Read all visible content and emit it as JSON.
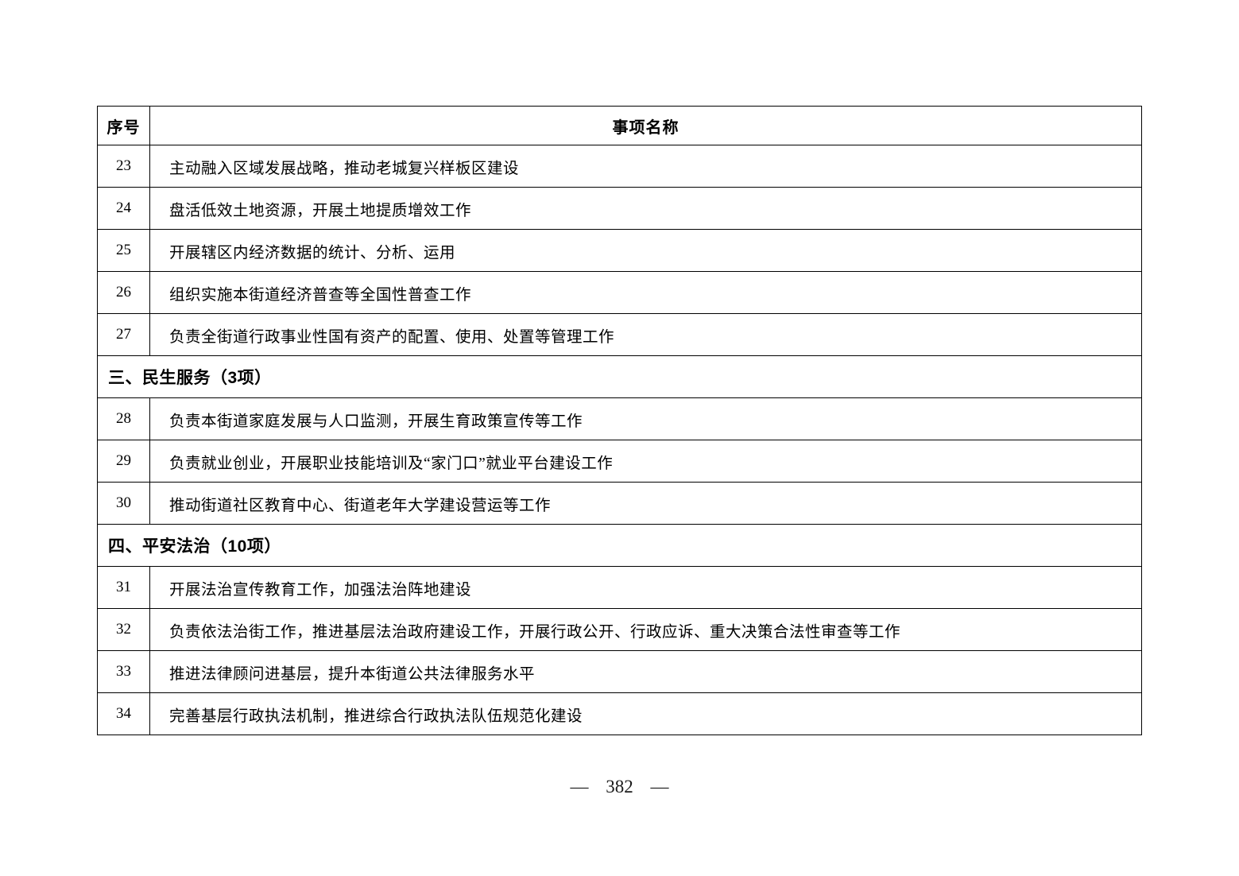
{
  "page": {
    "number_display": "— 382 —"
  },
  "table": {
    "headers": [
      "序号",
      "事项名称"
    ],
    "sections": [
      {
        "title": null,
        "rows": [
          {
            "no": "23",
            "name": "主动融入区域发展战略，推动老城复兴样板区建设"
          },
          {
            "no": "24",
            "name": "盘活低效土地资源，开展土地提质增效工作"
          },
          {
            "no": "25",
            "name": "开展辖区内经济数据的统计、分析、运用"
          },
          {
            "no": "26",
            "name": "组织实施本街道经济普查等全国性普查工作"
          },
          {
            "no": "27",
            "name": "负责全街道行政事业性国有资产的配置、使用、处置等管理工作"
          }
        ]
      },
      {
        "title": "三、民生服务（3项）",
        "rows": [
          {
            "no": "28",
            "name": "负责本街道家庭发展与人口监测，开展生育政策宣传等工作"
          },
          {
            "no": "29",
            "name": "负责就业创业，开展职业技能培训及“家门口”就业平台建设工作"
          },
          {
            "no": "30",
            "name": "推动街道社区教育中心、街道老年大学建设营运等工作"
          }
        ]
      },
      {
        "title": "四、平安法治（10项）",
        "rows": [
          {
            "no": "31",
            "name": "开展法治宣传教育工作，加强法治阵地建设"
          },
          {
            "no": "32",
            "name": "负责依法治街工作，推进基层法治政府建设工作，开展行政公开、行政应诉、重大决策合法性审查等工作"
          },
          {
            "no": "33",
            "name": "推进法律顾问进基层，提升本街道公共法律服务水平"
          },
          {
            "no": "34",
            "name": "完善基层行政执法机制，推进综合行政执法队伍规范化建设"
          }
        ]
      }
    ]
  }
}
